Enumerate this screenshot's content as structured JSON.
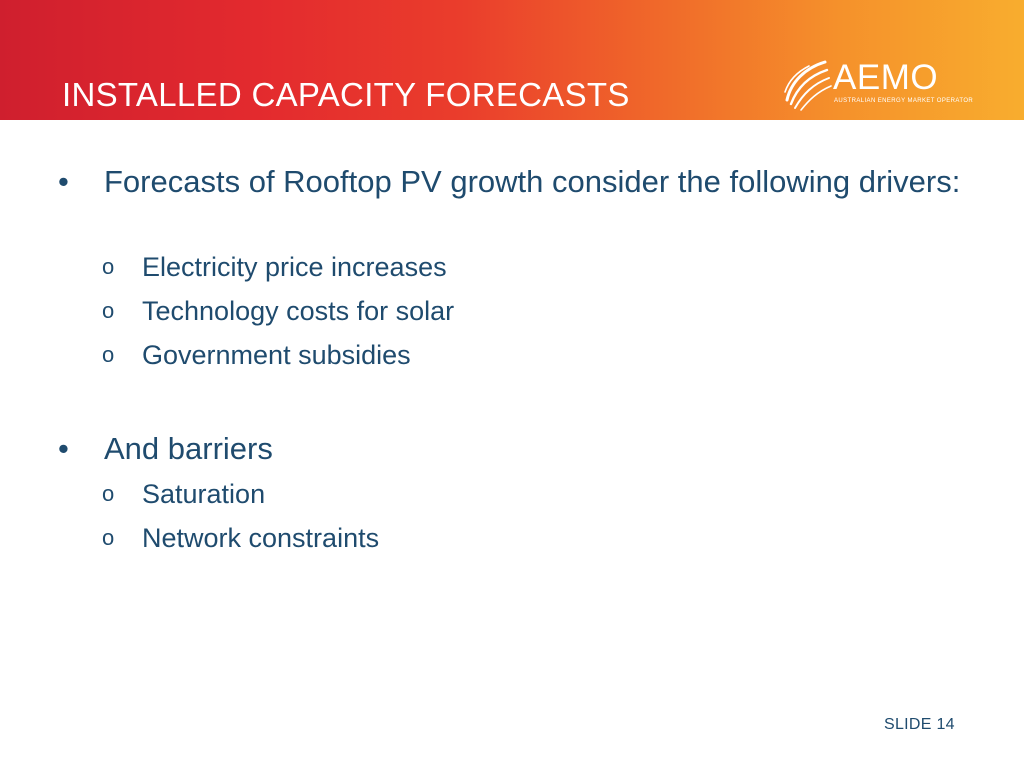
{
  "header": {
    "title": "INSTALLED CAPACITY FORECASTS",
    "logo_text": "AEMO",
    "logo_subtext": "AUSTRALIAN ENERGY MARKET OPERATOR",
    "gradient_colors": [
      "#cf1f2e",
      "#ea3d2c",
      "#f5912b",
      "#f8ad2e"
    ]
  },
  "body": {
    "bullet1": {
      "marker": "•",
      "text": "Forecasts of Rooftop PV growth consider the following drivers:",
      "sub_marker": "o",
      "items": [
        "Electricity price increases",
        "Technology costs for solar",
        "Government subsidies"
      ]
    },
    "bullet2": {
      "marker": "•",
      "text": "And barriers",
      "sub_marker": "o",
      "items": [
        "Saturation",
        "Network constraints"
      ]
    },
    "text_color": "#1f4b6e"
  },
  "footer": {
    "slide_label": "SLIDE 14"
  }
}
